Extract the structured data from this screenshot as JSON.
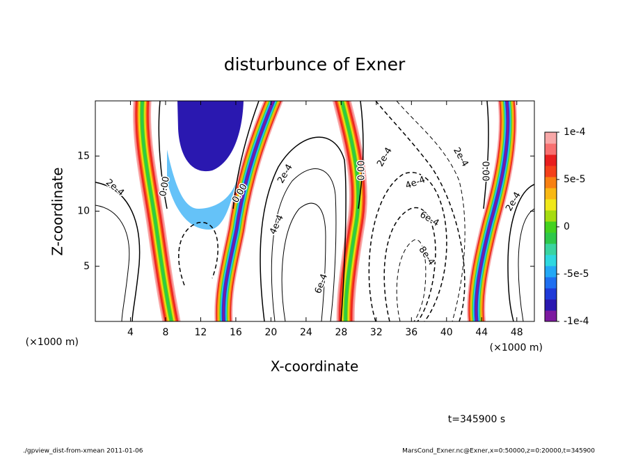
{
  "chart_data": {
    "type": "contour",
    "title": "disturbunce of Exner",
    "x_label": "X-coordinate",
    "y_label": "Z-coordinate",
    "x_unit": "(×1000 m)",
    "y_unit": "(×1000 m)",
    "xlim": [
      0,
      50
    ],
    "ylim": [
      0,
      20
    ],
    "xticks": [
      4,
      8,
      12,
      16,
      20,
      24,
      28,
      32,
      36,
      40,
      44,
      48
    ],
    "yticks": [
      5,
      10,
      15
    ],
    "clim": [
      -0.0001,
      0.0001
    ],
    "cticks": [
      {
        "value": 0.0001,
        "label": "1e-4"
      },
      {
        "value": 5e-05,
        "label": "5e-5"
      },
      0,
      {
        "value": -5e-05,
        "label": "-5e-5"
      },
      {
        "value": -0.0001,
        "label": "-1e-4"
      }
    ],
    "colors": [
      "#7d1aa0",
      "#2a18b0",
      "#1f3ad8",
      "#1f6ff0",
      "#23a8f5",
      "#2ed8e0",
      "#3ad4a0",
      "#2ec84a",
      "#44d21e",
      "#a6dc10",
      "#f0e81a",
      "#f8b814",
      "#f88012",
      "#f4401a",
      "#e81e1e",
      "#f87070",
      "#f8a8a8"
    ],
    "contour_labels": [
      "2e-4",
      "0.00",
      "0.00",
      "2e-4",
      "4e-4",
      "6e-4",
      "0.00",
      "2e-4",
      "4e-4",
      "6e-4",
      "8e-4",
      "2e-4",
      "0.00",
      "2e-4"
    ],
    "time_label": "t=345900 s",
    "footer_left": "./gpview_dist-from-xmean  2011-01-06",
    "footer_right": "MarsCond_Exner.nc@Exner,x=0:50000,z=0:20000,t=345900"
  }
}
